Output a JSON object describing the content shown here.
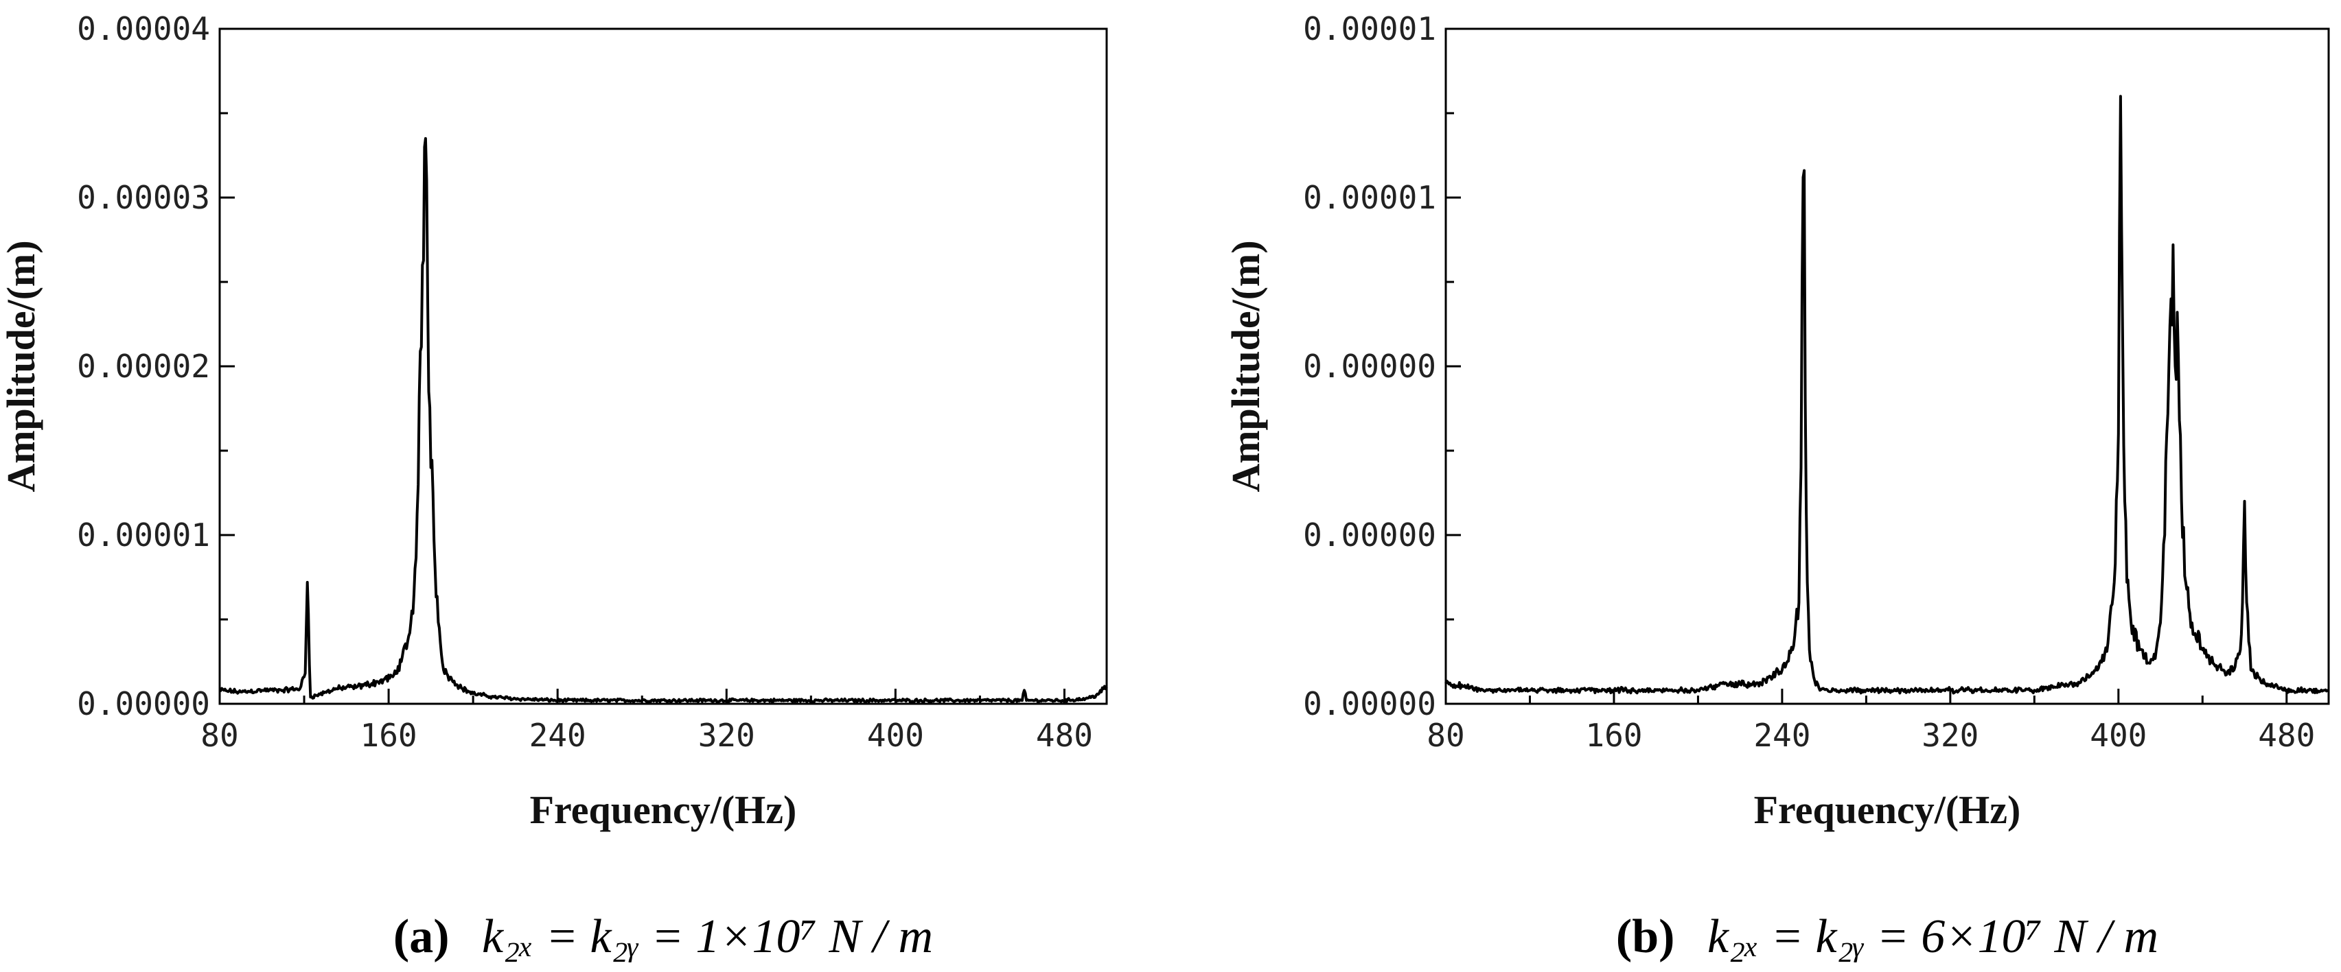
{
  "chart_data": [
    {
      "type": "line",
      "xlabel": "Frequency/(Hz)",
      "ylabel": "Amplitude/(m)",
      "xlim": [
        80,
        500
      ],
      "ylim": [
        0,
        4e-05
      ],
      "xticks": [
        "80",
        "160",
        "240",
        "320",
        "400",
        "480"
      ],
      "yticks": [
        "0.00000",
        "0.00001",
        "0.00002",
        "0.00003",
        "0.00004"
      ],
      "caption_tag": "(a)",
      "caption_eq": "k₂ₓ = k₂ᵧ = 1×10⁷ N / m",
      "series": [
        {
          "x": [
            80,
            90,
            100,
            110,
            118,
            120.5,
            121.5,
            123,
            126,
            135,
            145,
            155,
            162,
            166,
            170,
            172,
            174,
            176,
            177,
            177.5,
            178,
            178.5,
            179,
            180,
            181,
            182,
            184,
            186,
            190,
            195,
            200,
            210,
            220,
            240,
            280,
            320,
            400,
            460,
            461,
            462,
            480,
            490,
            495,
            500
          ],
          "y": [
            8e-07,
            7e-07,
            8e-07,
            8e-07,
            9e-07,
            1.8e-06,
            7.2e-06,
            4e-07,
            5e-07,
            9e-07,
            1e-06,
            1.3e-06,
            1.6e-06,
            2.5e-06,
            4.2e-06,
            6.5e-06,
            1.3e-05,
            2.6e-05,
            3.3e-05,
            3.35e-05,
            3.1e-05,
            2.4e-05,
            1.85e-05,
            1.4e-05,
            1.25e-05,
            8e-06,
            4.5e-06,
            2e-06,
            1.4e-06,
            9e-07,
            6e-07,
            4e-07,
            3e-07,
            2e-07,
            2e-07,
            2e-07,
            2e-07,
            2e-07,
            8e-07,
            2e-07,
            2e-07,
            3e-07,
            5e-07,
            1e-06
          ]
        }
      ]
    },
    {
      "type": "line",
      "xlabel": "Frequency/(Hz)",
      "ylabel": "Amplitude/(m)",
      "xlim": [
        80,
        500
      ],
      "ylim": [
        0,
        1e-05
      ],
      "xticks": [
        "80",
        "160",
        "240",
        "320",
        "400",
        "480"
      ],
      "yticks": [
        "0.00000",
        "0.00000",
        "0.00000",
        "0.00001",
        "0.00001"
      ],
      "caption_tag": "(b)",
      "caption_eq": "k₂ₓ = k₂ᵧ = 6×10⁷ N / m",
      "series": [
        {
          "x": [
            80,
            100,
            120,
            140,
            160,
            180,
            200,
            215,
            230,
            240,
            245,
            248,
            249,
            250,
            250.5,
            251,
            252,
            253,
            255,
            258,
            265,
            280,
            300,
            320,
            340,
            360,
            380,
            390,
            395,
            398,
            400,
            401,
            402,
            403,
            404,
            406,
            410,
            415,
            418,
            420,
            422,
            423,
            424,
            425,
            426,
            427,
            428,
            429,
            430,
            432,
            435,
            440,
            445,
            450,
            455,
            458,
            459,
            460,
            461,
            463,
            470,
            480,
            490,
            500
          ],
          "y": [
            3e-07,
            2e-07,
            2e-07,
            2e-07,
            2e-07,
            2e-07,
            2e-07,
            3e-07,
            3e-07,
            5e-07,
            8e-07,
            1.5e-06,
            3.5e-06,
            7.8e-06,
            7.9e-06,
            4.5e-06,
            1.8e-06,
            8e-07,
            4e-07,
            2e-07,
            2e-07,
            2e-07,
            2e-07,
            2e-07,
            2e-07,
            2e-07,
            3e-07,
            5e-07,
            9e-07,
            1.8e-06,
            4e-06,
            9e-06,
            5.5e-06,
            3e-06,
            1.8e-06,
            1.2e-06,
            8e-07,
            6e-07,
            8e-07,
            1.2e-06,
            2.5e-06,
            4e-06,
            5e-06,
            6e-06,
            6.8e-06,
            5e-06,
            5.8e-06,
            4.2e-06,
            3e-06,
            1.8e-06,
            1.2e-06,
            8e-07,
            6e-07,
            5e-07,
            5e-07,
            8e-07,
            1.5e-06,
            3e-06,
            1.5e-06,
            5e-07,
            3e-07,
            2e-07,
            2e-07,
            2e-07
          ]
        }
      ]
    }
  ]
}
